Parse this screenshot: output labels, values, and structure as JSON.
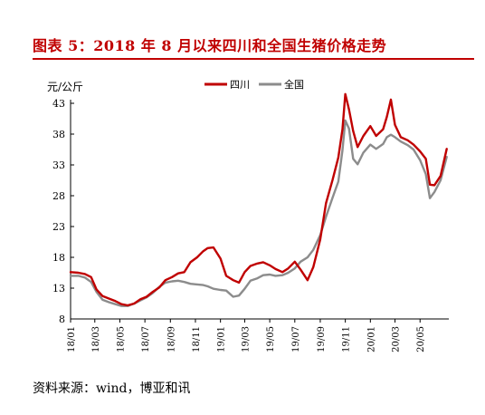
{
  "figure": {
    "title": "图表 5：2018 年 8 月以来四川和全国生猪价格走势",
    "source": "资料来源：wind，博亚和讯",
    "accent_color": "#c00000"
  },
  "chart_data": {
    "type": "line",
    "unit_label": "元/公斤",
    "xlabel": "",
    "ylabel": "元/公斤",
    "x_ticks": [
      "18/01",
      "18/03",
      "18/05",
      "18/07",
      "18/09",
      "18/11",
      "19/01",
      "19/03",
      "19/05",
      "19/07",
      "19/09",
      "19/11",
      "20/01",
      "20/03",
      "20/05"
    ],
    "ylim": [
      8,
      43
    ],
    "y_ticks": [
      8,
      13,
      18,
      23,
      28,
      33,
      38,
      43
    ],
    "grid": false,
    "legend_position": "top-center",
    "series": [
      {
        "name": "四川",
        "color": "#c00000",
        "x": [
          "2018-01-01",
          "2018-01-20",
          "2018-02-05",
          "2018-02-20",
          "2018-03-05",
          "2018-03-20",
          "2018-04-05",
          "2018-04-20",
          "2018-05-05",
          "2018-05-20",
          "2018-06-05",
          "2018-06-20",
          "2018-07-05",
          "2018-07-20",
          "2018-08-05",
          "2018-08-20",
          "2018-09-05",
          "2018-09-20",
          "2018-10-05",
          "2018-10-20",
          "2018-11-05",
          "2018-11-20",
          "2018-12-01",
          "2018-12-15",
          "2019-01-01",
          "2019-01-15",
          "2019-02-01",
          "2019-02-15",
          "2019-03-01",
          "2019-03-15",
          "2019-04-01",
          "2019-04-15",
          "2019-05-01",
          "2019-05-15",
          "2019-06-01",
          "2019-06-15",
          "2019-07-01",
          "2019-07-15",
          "2019-08-01",
          "2019-08-15",
          "2019-09-01",
          "2019-09-15",
          "2019-10-01",
          "2019-10-15",
          "2019-10-25",
          "2019-11-01",
          "2019-11-10",
          "2019-11-20",
          "2019-12-01",
          "2019-12-15",
          "2020-01-01",
          "2020-01-15",
          "2020-02-01",
          "2020-02-10",
          "2020-02-20",
          "2020-03-01",
          "2020-03-15",
          "2020-04-01",
          "2020-04-15",
          "2020-05-01",
          "2020-05-15",
          "2020-05-25",
          "2020-06-05",
          "2020-06-20",
          "2020-07-05"
        ],
        "values": [
          15.6,
          15.5,
          15.3,
          14.8,
          12.8,
          11.7,
          11.3,
          10.9,
          10.4,
          10.2,
          10.5,
          11.2,
          11.6,
          12.4,
          13.1,
          14.3,
          14.8,
          15.4,
          15.6,
          17.2,
          18.0,
          19.0,
          19.5,
          19.6,
          17.8,
          15.0,
          14.3,
          13.9,
          15.6,
          16.6,
          17.0,
          17.2,
          16.7,
          16.1,
          15.6,
          16.2,
          17.3,
          16.0,
          14.3,
          16.4,
          20.9,
          26.8,
          30.6,
          34.2,
          38.8,
          44.5,
          42.0,
          38.5,
          35.9,
          37.7,
          39.3,
          37.7,
          38.8,
          40.8,
          43.6,
          39.5,
          37.5,
          37.0,
          36.3,
          35.2,
          34.0,
          29.8,
          29.7,
          31.2,
          35.6
        ]
      },
      {
        "name": "全国",
        "color": "#8c8c8c",
        "x": [
          "2018-01-01",
          "2018-01-20",
          "2018-02-05",
          "2018-02-20",
          "2018-03-05",
          "2018-03-20",
          "2018-04-05",
          "2018-04-20",
          "2018-05-05",
          "2018-05-20",
          "2018-06-05",
          "2018-06-20",
          "2018-07-05",
          "2018-07-20",
          "2018-08-05",
          "2018-08-20",
          "2018-09-05",
          "2018-09-20",
          "2018-10-05",
          "2018-10-20",
          "2018-11-05",
          "2018-11-20",
          "2018-12-01",
          "2018-12-15",
          "2019-01-01",
          "2019-01-15",
          "2019-02-01",
          "2019-02-15",
          "2019-03-01",
          "2019-03-15",
          "2019-04-01",
          "2019-04-15",
          "2019-05-01",
          "2019-05-15",
          "2019-06-01",
          "2019-06-15",
          "2019-07-01",
          "2019-07-15",
          "2019-08-01",
          "2019-08-15",
          "2019-09-01",
          "2019-09-15",
          "2019-10-01",
          "2019-10-15",
          "2019-10-25",
          "2019-11-01",
          "2019-11-10",
          "2019-11-20",
          "2019-12-01",
          "2019-12-15",
          "2020-01-01",
          "2020-01-15",
          "2020-02-01",
          "2020-02-10",
          "2020-02-20",
          "2020-03-01",
          "2020-03-15",
          "2020-04-01",
          "2020-04-15",
          "2020-05-01",
          "2020-05-15",
          "2020-05-25",
          "2020-06-05",
          "2020-06-20",
          "2020-07-05"
        ],
        "values": [
          15.0,
          15.0,
          14.7,
          14.0,
          12.4,
          11.1,
          10.7,
          10.4,
          10.1,
          10.1,
          10.5,
          11.0,
          11.5,
          12.2,
          13.2,
          13.9,
          14.1,
          14.2,
          14.0,
          13.7,
          13.6,
          13.5,
          13.3,
          12.9,
          12.7,
          12.6,
          11.6,
          11.8,
          12.9,
          14.2,
          14.6,
          15.1,
          15.2,
          15.0,
          15.1,
          15.5,
          16.2,
          17.3,
          18.0,
          19.2,
          21.6,
          24.6,
          27.7,
          30.3,
          35.4,
          40.2,
          38.9,
          34.0,
          33.1,
          35.0,
          36.3,
          35.6,
          36.4,
          37.5,
          37.9,
          37.5,
          36.8,
          36.2,
          35.5,
          33.8,
          31.5,
          27.6,
          28.6,
          30.5,
          34.3
        ]
      }
    ]
  }
}
